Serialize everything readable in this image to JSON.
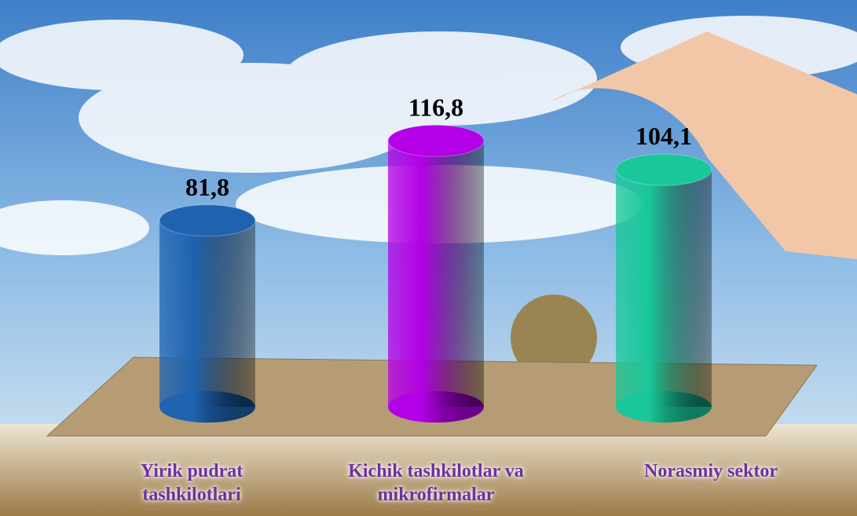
{
  "chart_data": {
    "type": "cylinder",
    "categories": [
      "Yirik pudrat tashkilotlari",
      "Kichik tashkilotlar va mikrofirmalar",
      "Norasmiy sektor"
    ],
    "values": [
      81.8,
      116.8,
      104.1
    ],
    "value_labels": [
      "81,8",
      "116,8",
      "104,1"
    ],
    "colors": [
      "#1f63b0",
      "#b300e6",
      "#19c79a"
    ]
  }
}
